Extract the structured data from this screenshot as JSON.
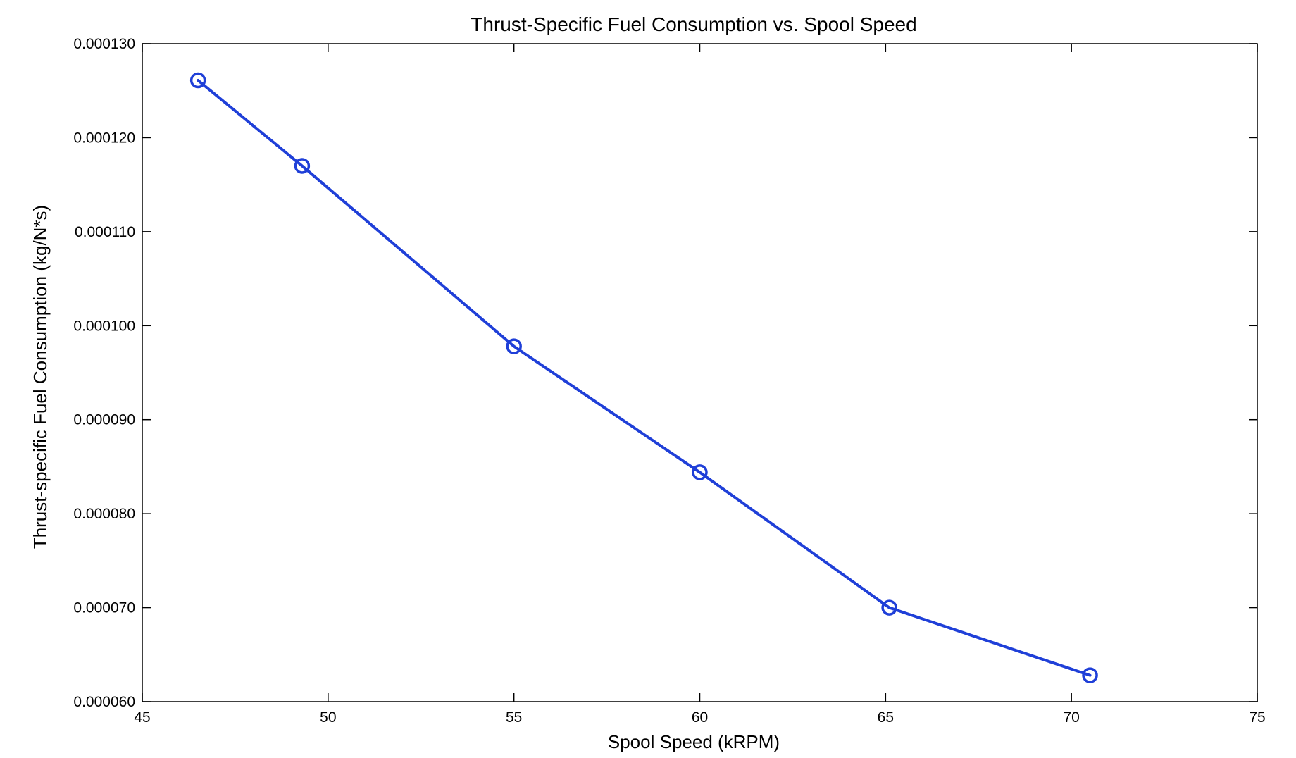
{
  "chart_data": {
    "type": "line",
    "title": "Thrust-Specific Fuel Consumption vs. Spool Speed",
    "xlabel": "Spool Speed (kRPM)",
    "ylabel": "Thrust-specific Fuel Consumption (kg/N*s)",
    "xlim": [
      45,
      75
    ],
    "ylim": [
      6e-05,
      0.00013
    ],
    "xticks": [
      45,
      50,
      55,
      60,
      65,
      70,
      75
    ],
    "xtick_labels": [
      "45",
      "50",
      "55",
      "60",
      "65",
      "70",
      "75"
    ],
    "yticks": [
      6e-05,
      7e-05,
      8e-05,
      9e-05,
      0.0001,
      0.00011,
      0.00012,
      0.00013
    ],
    "ytick_labels": [
      "0.000060",
      "0.000070",
      "0.000080",
      "0.000090",
      "0.000100",
      "0.000110",
      "0.000120",
      "0.000130"
    ],
    "grid": false,
    "series": [
      {
        "color": "#1f3fd8",
        "marker": "circle-open",
        "x": [
          46.5,
          49.3,
          55.0,
          60.0,
          65.1,
          70.5
        ],
        "y": [
          0.0001261,
          0.000117,
          9.78e-05,
          8.44e-05,
          7e-05,
          6.28e-05
        ]
      }
    ]
  }
}
